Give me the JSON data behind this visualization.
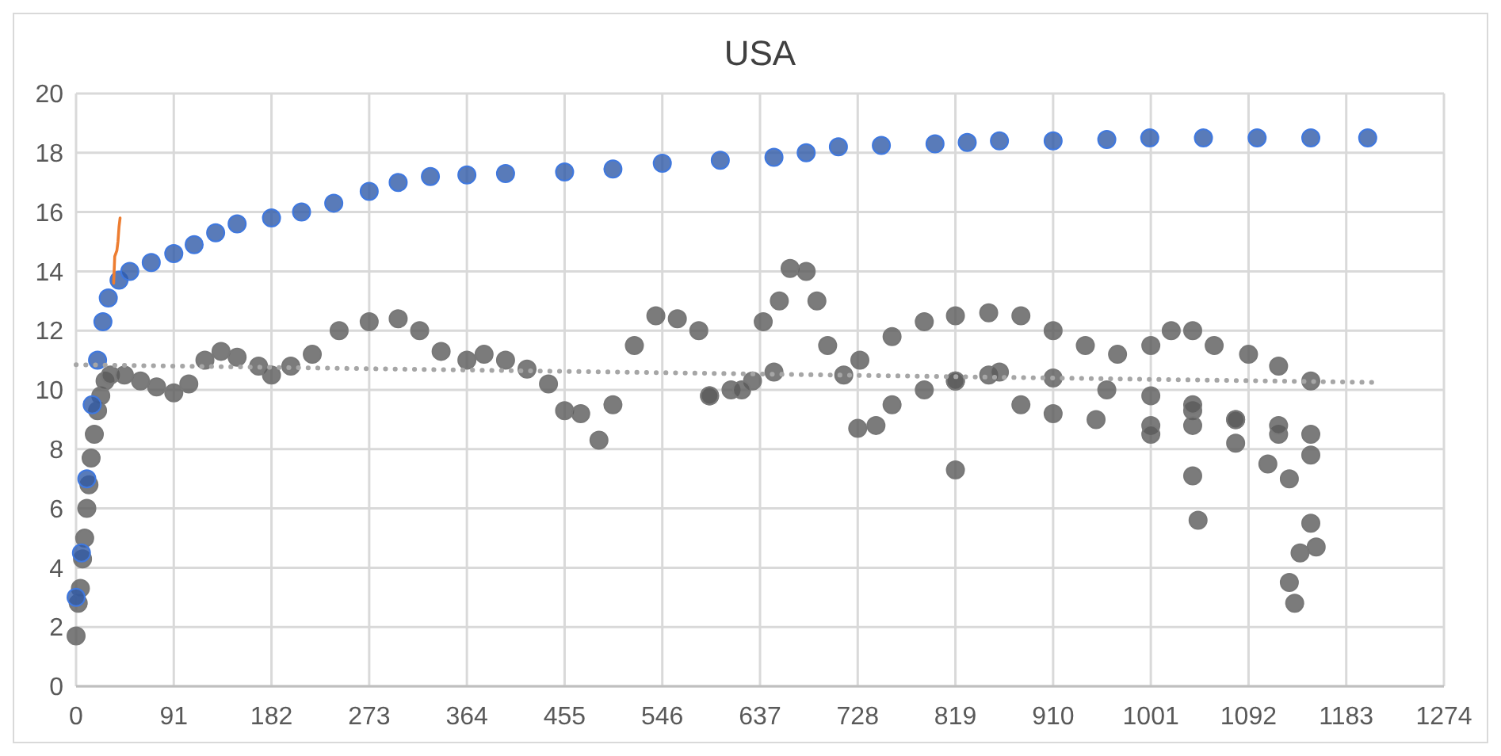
{
  "chart_data": {
    "type": "scatter",
    "title": "USA",
    "xlim": [
      0,
      1274
    ],
    "xticks": [
      0,
      91,
      182,
      273,
      364,
      455,
      546,
      637,
      728,
      819,
      910,
      1001,
      1092,
      1183,
      1274
    ],
    "ylim": [
      0,
      20
    ],
    "yticks": [
      0,
      2,
      4,
      6,
      8,
      10,
      12,
      14,
      16,
      18,
      20
    ],
    "grid": true,
    "marker": "circle",
    "series": [
      {
        "color": "#2f5aa8",
        "x": [
          0,
          5,
          10,
          15,
          20,
          25,
          30,
          40,
          50,
          70,
          91,
          110,
          130,
          150,
          182,
          210,
          240,
          273,
          300,
          330,
          364,
          400,
          455,
          500,
          546,
          600,
          650,
          680,
          710,
          750,
          800,
          830,
          860,
          910,
          960,
          1000,
          1050,
          1100,
          1150,
          1203
        ],
        "values": [
          3,
          4.5,
          7,
          9.5,
          11,
          12.3,
          13.1,
          13.7,
          14,
          14.3,
          14.6,
          14.9,
          15.3,
          15.6,
          15.8,
          16,
          16.3,
          16.7,
          17,
          17.2,
          17.25,
          17.3,
          17.35,
          17.45,
          17.65,
          17.75,
          17.85,
          18,
          18.2,
          18.25,
          18.3,
          18.35,
          18.4,
          18.4,
          18.45,
          18.5,
          18.5,
          18.5,
          18.5,
          18.5
        ]
      },
      {
        "color": "#5a5a5a",
        "x": [
          0,
          2,
          4,
          6,
          8,
          10,
          12,
          14,
          17,
          20,
          23,
          27,
          32,
          45,
          60,
          75,
          91,
          105,
          120,
          135,
          150,
          170,
          182,
          200,
          220,
          245,
          273,
          300,
          320,
          340,
          364,
          380,
          400,
          420,
          440,
          455,
          470,
          487,
          500,
          520,
          540,
          560,
          580,
          590,
          610,
          630,
          640,
          655,
          665,
          680,
          690,
          700,
          715,
          730,
          760,
          790,
          819,
          850,
          880,
          910,
          940,
          970,
          1001,
          1020,
          1040,
          1060,
          1092,
          1120,
          1150,
          590,
          620,
          650,
          728,
          745,
          760,
          790,
          819,
          850,
          880,
          910,
          950,
          1001,
          1040,
          1080,
          1120,
          1150,
          819,
          860,
          910,
          960,
          1001,
          1040,
          1080,
          1120,
          1150,
          1001,
          1040,
          1080,
          1110,
          1130,
          819,
          1040,
          1045,
          1150,
          1130,
          1135,
          1140,
          1155
        ],
        "values": [
          1.7,
          2.8,
          3.3,
          4.3,
          5,
          6,
          6.8,
          7.7,
          8.5,
          9.3,
          9.8,
          10.3,
          10.5,
          10.5,
          10.3,
          10.1,
          9.9,
          10.2,
          11,
          11.3,
          11.1,
          10.8,
          10.5,
          10.8,
          11.2,
          12,
          12.3,
          12.4,
          12,
          11.3,
          11,
          11.2,
          11,
          10.7,
          10.2,
          9.3,
          9.2,
          8.3,
          9.5,
          11.5,
          12.5,
          12.4,
          12,
          9.8,
          10,
          10.3,
          12.3,
          13,
          14.1,
          14,
          13,
          11.5,
          10.5,
          11,
          11.8,
          12.3,
          12.5,
          12.6,
          12.5,
          12,
          11.5,
          11.2,
          11.5,
          12,
          12,
          11.5,
          11.2,
          10.8,
          10.3,
          9.8,
          10,
          10.6,
          8.7,
          8.8,
          9.5,
          10,
          10.3,
          10.5,
          9.5,
          9.2,
          9,
          8.8,
          9.3,
          9,
          8.5,
          7.8,
          10.3,
          10.6,
          10.4,
          10,
          9.8,
          9.5,
          9,
          8.8,
          8.5,
          8.5,
          8.8,
          8.2,
          7.5,
          7,
          7.3,
          7.1,
          5.6,
          5.5,
          3.5,
          2.8,
          4.5,
          4.7
        ]
      },
      {
        "type": "line",
        "color": "#ed7d31",
        "marker": "none",
        "line_style": "solid",
        "x": [
          35,
          36,
          38,
          39,
          40,
          41
        ],
        "values": [
          13.6,
          14.5,
          14.7,
          15,
          15.5,
          15.8
        ]
      },
      {
        "type": "line",
        "color": "#a6a6a6",
        "marker": "none",
        "line_style": "dotted",
        "x": [
          0,
          1213
        ],
        "values": [
          10.85,
          10.25
        ]
      }
    ]
  }
}
